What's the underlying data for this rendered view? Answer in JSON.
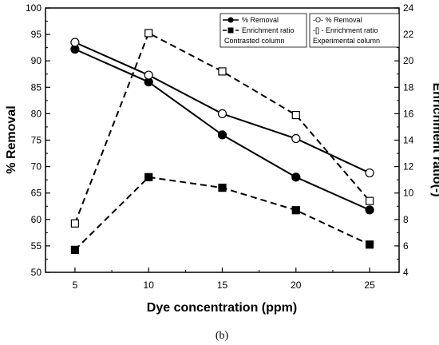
{
  "chart_data": {
    "type": "line",
    "title": "",
    "xlabel": "Dye concentration (ppm)",
    "ylabel_left": "% Removal",
    "ylabel_right": "Enrichment ratio(-)",
    "x": [
      5,
      10,
      15,
      20,
      25
    ],
    "xlim": [
      3,
      27
    ],
    "xticks": [
      "5",
      "10",
      "15",
      "20",
      "25"
    ],
    "ylim_left": [
      50,
      100
    ],
    "yticks_left": [
      "50",
      "55",
      "60",
      "65",
      "70",
      "75",
      "80",
      "85",
      "90",
      "95",
      "100"
    ],
    "ylim_right": [
      4,
      24
    ],
    "yticks_right": [
      "4",
      "6",
      "8",
      "10",
      "12",
      "14",
      "16",
      "18",
      "20",
      "22",
      "24"
    ],
    "grid": false,
    "series": [
      {
        "name": "% Removal",
        "axis": "left",
        "marker": "filled-circle",
        "line": "solid",
        "values": [
          92.2,
          86.0,
          76.0,
          68.0,
          61.8
        ]
      },
      {
        "name": "Enrichment ratio",
        "axis": "right",
        "marker": "filled-square",
        "line": "dashed",
        "values": [
          5.7,
          11.2,
          10.4,
          8.7,
          6.1
        ]
      },
      {
        "name": "% Removal",
        "axis": "left",
        "marker": "open-circle",
        "line": "solid",
        "values": [
          93.5,
          87.3,
          80.0,
          75.3,
          68.8
        ]
      },
      {
        "name": "Enrichment ratio",
        "axis": "right",
        "marker": "open-square",
        "line": "dashed",
        "values": [
          7.7,
          22.1,
          19.2,
          15.9,
          9.4
        ]
      }
    ],
    "legends": [
      {
        "placement": "top-right-inner-left",
        "entries": [
          "% Removal",
          "Enrichment ratio"
        ],
        "note": "Contrasted column"
      },
      {
        "placement": "top-right",
        "entries": [
          "-O-  % Removal",
          "-[]  - Enrichment ratio"
        ],
        "note": "Experimental column"
      }
    ]
  },
  "caption": "(b)"
}
